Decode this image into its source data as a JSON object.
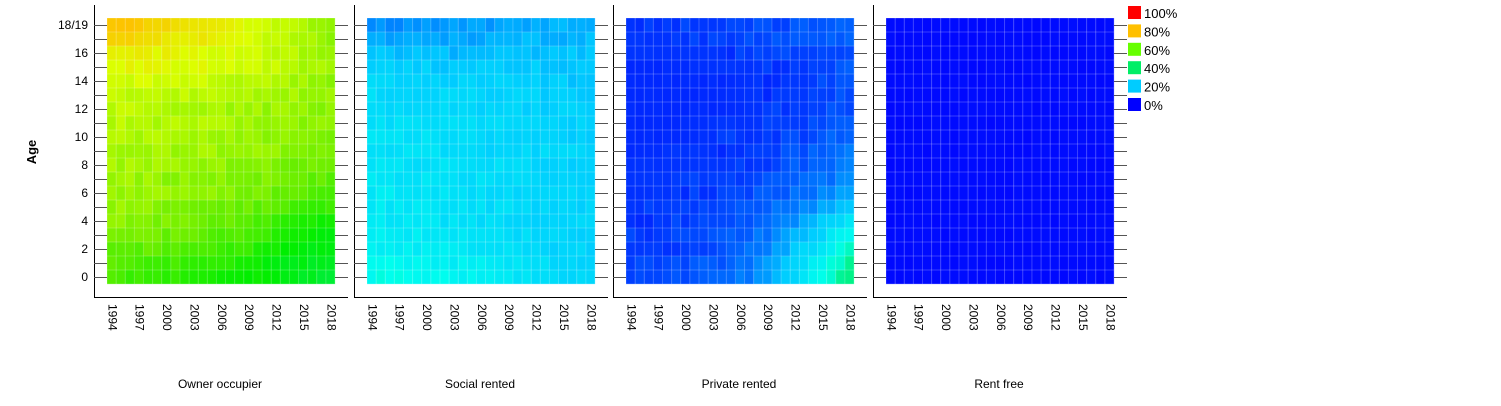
{
  "chart_data": {
    "type": "heatmap",
    "ylabel": "Age",
    "y_tick_labels": [
      "0",
      "2",
      "4",
      "6",
      "8",
      "10",
      "12",
      "14",
      "16",
      "18/19"
    ],
    "x_tick_labels": [
      "1994",
      "1997",
      "2000",
      "2003",
      "2006",
      "2009",
      "2012",
      "2015",
      "2018"
    ],
    "x_range": [
      1994,
      2018
    ],
    "ages": [
      0,
      1,
      2,
      3,
      4,
      5,
      6,
      7,
      8,
      9,
      10,
      11,
      12,
      13,
      14,
      15,
      16,
      17,
      18
    ],
    "legend": {
      "placement": "right",
      "entries": [
        {
          "label": "100%",
          "color": "#ff0000"
        },
        {
          "label": "80%",
          "color": "#ffc000"
        },
        {
          "label": "60%",
          "color": "#66ff00"
        },
        {
          "label": "40%",
          "color": "#00ee66"
        },
        {
          "label": "20%",
          "color": "#00ccff"
        },
        {
          "label": "0%",
          "color": "#0000ff"
        }
      ]
    },
    "color_scale": [
      {
        "value": 0,
        "color": "#0000ff"
      },
      {
        "value": 20,
        "color": "#00ccff"
      },
      {
        "value": 30,
        "color": "#00ffee"
      },
      {
        "value": 40,
        "color": "#00ee66"
      },
      {
        "value": 50,
        "color": "#00ee00"
      },
      {
        "value": 60,
        "color": "#66ee00"
      },
      {
        "value": 70,
        "color": "#ddff00"
      },
      {
        "value": 80,
        "color": "#ffc000"
      },
      {
        "value": 100,
        "color": "#ff0000"
      }
    ],
    "panels": [
      {
        "title": "Owner occupier",
        "value_grid_by_age": [
          [
            57,
            55,
            53,
            51,
            49,
            45
          ],
          [
            59,
            57,
            55,
            52,
            49,
            46
          ],
          [
            60,
            59,
            57,
            55,
            51,
            48
          ],
          [
            62,
            61,
            59,
            57,
            53,
            50
          ],
          [
            63,
            62,
            61,
            59,
            55,
            52
          ],
          [
            64,
            63,
            62,
            60,
            58,
            55
          ],
          [
            64,
            64,
            63,
            62,
            60,
            57
          ],
          [
            65,
            64,
            63,
            62,
            61,
            59
          ],
          [
            65,
            65,
            64,
            63,
            62,
            60
          ],
          [
            66,
            65,
            65,
            64,
            63,
            61
          ],
          [
            66,
            66,
            65,
            64,
            63,
            62
          ],
          [
            67,
            66,
            66,
            65,
            64,
            63
          ],
          [
            67,
            67,
            66,
            65,
            64,
            63
          ],
          [
            68,
            67,
            67,
            66,
            65,
            64
          ],
          [
            69,
            69,
            68,
            67,
            66,
            64
          ],
          [
            71,
            71,
            70,
            69,
            67,
            65
          ],
          [
            73,
            72,
            71,
            69,
            67,
            65
          ],
          [
            77,
            75,
            73,
            70,
            67,
            64
          ],
          [
            79,
            77,
            74,
            71,
            67,
            63
          ]
        ]
      },
      {
        "title": "Social rented",
        "value_grid_by_age": [
          [
            30,
            29,
            28,
            26,
            24,
            22
          ],
          [
            29,
            28,
            27,
            25,
            23,
            21
          ],
          [
            28,
            27,
            26,
            24,
            22,
            21
          ],
          [
            27,
            26,
            25,
            23,
            22,
            21
          ],
          [
            26,
            25,
            24,
            23,
            22,
            21
          ],
          [
            26,
            25,
            24,
            23,
            22,
            21
          ],
          [
            26,
            25,
            24,
            23,
            22,
            21
          ],
          [
            25,
            25,
            24,
            23,
            22,
            21
          ],
          [
            25,
            24,
            24,
            23,
            22,
            21
          ],
          [
            24,
            24,
            23,
            22,
            22,
            21
          ],
          [
            24,
            24,
            23,
            22,
            21,
            21
          ],
          [
            24,
            23,
            23,
            22,
            21,
            21
          ],
          [
            23,
            23,
            22,
            22,
            21,
            21
          ],
          [
            23,
            22,
            22,
            21,
            21,
            20
          ],
          [
            22,
            22,
            21,
            21,
            20,
            20
          ],
          [
            21,
            21,
            20,
            20,
            20,
            20
          ],
          [
            19,
            19,
            18,
            19,
            19,
            19
          ],
          [
            16,
            16,
            16,
            17,
            18,
            18
          ],
          [
            14,
            14,
            15,
            16,
            17,
            18
          ]
        ]
      },
      {
        "title": "Private rented",
        "value_grid_by_age": [
          [
            6,
            7,
            9,
            14,
            25,
            38
          ],
          [
            6,
            7,
            9,
            13,
            24,
            36
          ],
          [
            6,
            6,
            8,
            12,
            22,
            33
          ],
          [
            6,
            6,
            8,
            11,
            19,
            29
          ],
          [
            5,
            6,
            7,
            10,
            16,
            25
          ],
          [
            5,
            6,
            7,
            9,
            13,
            20
          ],
          [
            5,
            5,
            6,
            8,
            11,
            16
          ],
          [
            5,
            5,
            6,
            7,
            10,
            13
          ],
          [
            5,
            5,
            5,
            6,
            9,
            12
          ],
          [
            4,
            5,
            5,
            6,
            8,
            11
          ],
          [
            4,
            4,
            5,
            6,
            7,
            10
          ],
          [
            4,
            4,
            5,
            5,
            7,
            9
          ],
          [
            4,
            4,
            4,
            5,
            6,
            8
          ],
          [
            4,
            4,
            4,
            5,
            6,
            8
          ],
          [
            4,
            4,
            4,
            5,
            6,
            8
          ],
          [
            4,
            4,
            5,
            5,
            6,
            8
          ],
          [
            5,
            5,
            5,
            6,
            7,
            8
          ],
          [
            5,
            5,
            6,
            7,
            8,
            9
          ],
          [
            5,
            6,
            6,
            7,
            8,
            9
          ]
        ]
      },
      {
        "title": "Rent free",
        "value_grid_by_age": [
          [
            1,
            1,
            1,
            1,
            1,
            1
          ],
          [
            1,
            1,
            1,
            1,
            1,
            1
          ],
          [
            1,
            1,
            1,
            1,
            1,
            1
          ],
          [
            1,
            1,
            1,
            1,
            1,
            1
          ],
          [
            1,
            1,
            1,
            1,
            1,
            1
          ],
          [
            1,
            1,
            1,
            1,
            1,
            1
          ],
          [
            1,
            1,
            1,
            1,
            1,
            1
          ],
          [
            1,
            1,
            1,
            1,
            1,
            1
          ],
          [
            1,
            1,
            1,
            1,
            1,
            1
          ],
          [
            1,
            1,
            1,
            1,
            1,
            1
          ],
          [
            1,
            1,
            1,
            1,
            1,
            1
          ],
          [
            1,
            1,
            1,
            1,
            1,
            1
          ],
          [
            1,
            1,
            1,
            1,
            1,
            1
          ],
          [
            1,
            1,
            1,
            1,
            1,
            1
          ],
          [
            1,
            1,
            1,
            1,
            1,
            1
          ],
          [
            1,
            1,
            1,
            1,
            1,
            1
          ],
          [
            1,
            1,
            1,
            1,
            1,
            1
          ],
          [
            1,
            1,
            1,
            1,
            1,
            1
          ],
          [
            1,
            1,
            1,
            1,
            1,
            1
          ]
        ]
      }
    ]
  }
}
